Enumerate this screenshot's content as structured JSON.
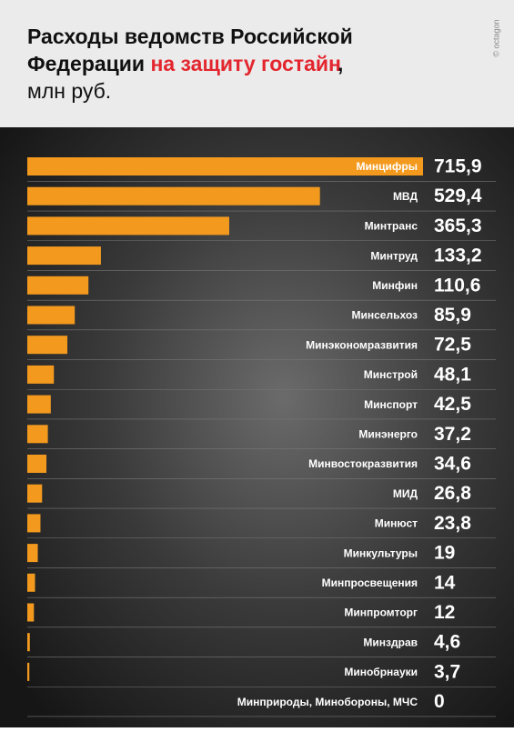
{
  "chart_data": {
    "type": "bar",
    "orientation": "horizontal",
    "title_parts": [
      "Расходы ведомств Российской",
      "Федерации",
      "на защиту гостайн",
      ","
    ],
    "subtitle": "млн руб.",
    "credit": "© octagon",
    "color": "#f39a1e",
    "highlight_color": "#e3262e",
    "categories": [
      "Минцифры",
      "МВД",
      "Минтранс",
      "Минтруд",
      "Минфин",
      "Минсельхоз",
      "Минэкономразвития",
      "Минстрой",
      "Минспорт",
      "Минэнерго",
      "Минвостокразвития",
      "МИД",
      "Минюст",
      "Минкультуры",
      "Минпросвещения",
      "Минпромторг",
      "Минздрав",
      "Минобрнауки",
      "Минприроды, Минобороны, МЧС"
    ],
    "values": [
      715.9,
      529.4,
      365.3,
      133.2,
      110.6,
      85.9,
      72.5,
      48.1,
      42.5,
      37.2,
      34.6,
      26.8,
      23.8,
      19,
      14,
      12,
      4.6,
      3.7,
      0
    ],
    "value_labels": [
      "715,9",
      "529,4",
      "365,3",
      "133,2",
      "110,6",
      "85,9",
      "72,5",
      "48,1",
      "42,5",
      "37,2",
      "34,6",
      "26,8",
      "23,8",
      "19",
      "14",
      "12",
      "4,6",
      "3,7",
      "0"
    ]
  }
}
